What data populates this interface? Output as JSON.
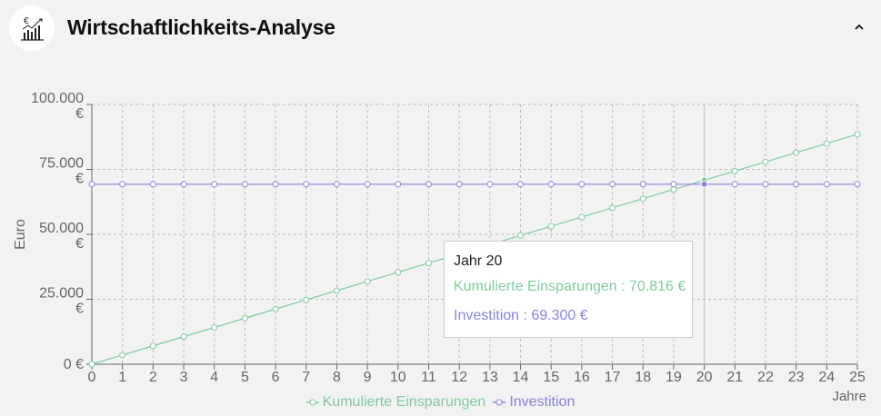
{
  "header": {
    "title": "Wirtschaftlichkeits-Analyse",
    "logo_icon": "euro-chart-icon",
    "logo_symbol": "€",
    "collapse_icon": "chevron-up-icon"
  },
  "tooltip": {
    "heading": "Jahr 20",
    "row1": "Kumulierte Einsparungen : 70.816 €",
    "row2": "Investition : 69.300 €"
  },
  "chart_data": {
    "type": "line",
    "xlabel": "Jahre",
    "ylabel": "Euro",
    "x": [
      0,
      1,
      2,
      3,
      4,
      5,
      6,
      7,
      8,
      9,
      10,
      11,
      12,
      13,
      14,
      15,
      16,
      17,
      18,
      19,
      20,
      21,
      22,
      23,
      24,
      25
    ],
    "ylim": [
      0,
      100000
    ],
    "y_ticks": [
      0,
      25000,
      50000,
      75000,
      100000
    ],
    "y_tick_labels": [
      [
        "0 €"
      ],
      [
        "25.000",
        "€"
      ],
      [
        "50.000",
        "€"
      ],
      [
        "75.000",
        "€"
      ],
      [
        "100.000",
        "€"
      ]
    ],
    "grid": true,
    "legend_position": "bottom",
    "active_x": 20,
    "series": [
      {
        "name": "Kumulierte Einsparungen",
        "color": "#82ca9d",
        "values": [
          0,
          3541,
          7082,
          10622,
          14163,
          17704,
          21245,
          24786,
          28326,
          31867,
          35408,
          38949,
          42490,
          46030,
          49571,
          53112,
          56653,
          60194,
          63734,
          67275,
          70816,
          74357,
          77898,
          81438,
          84979,
          88520
        ]
      },
      {
        "name": "Investition",
        "color": "#8884d8",
        "values": [
          69300,
          69300,
          69300,
          69300,
          69300,
          69300,
          69300,
          69300,
          69300,
          69300,
          69300,
          69300,
          69300,
          69300,
          69300,
          69300,
          69300,
          69300,
          69300,
          69300,
          69300,
          69300,
          69300,
          69300,
          69300,
          69300
        ]
      }
    ]
  }
}
